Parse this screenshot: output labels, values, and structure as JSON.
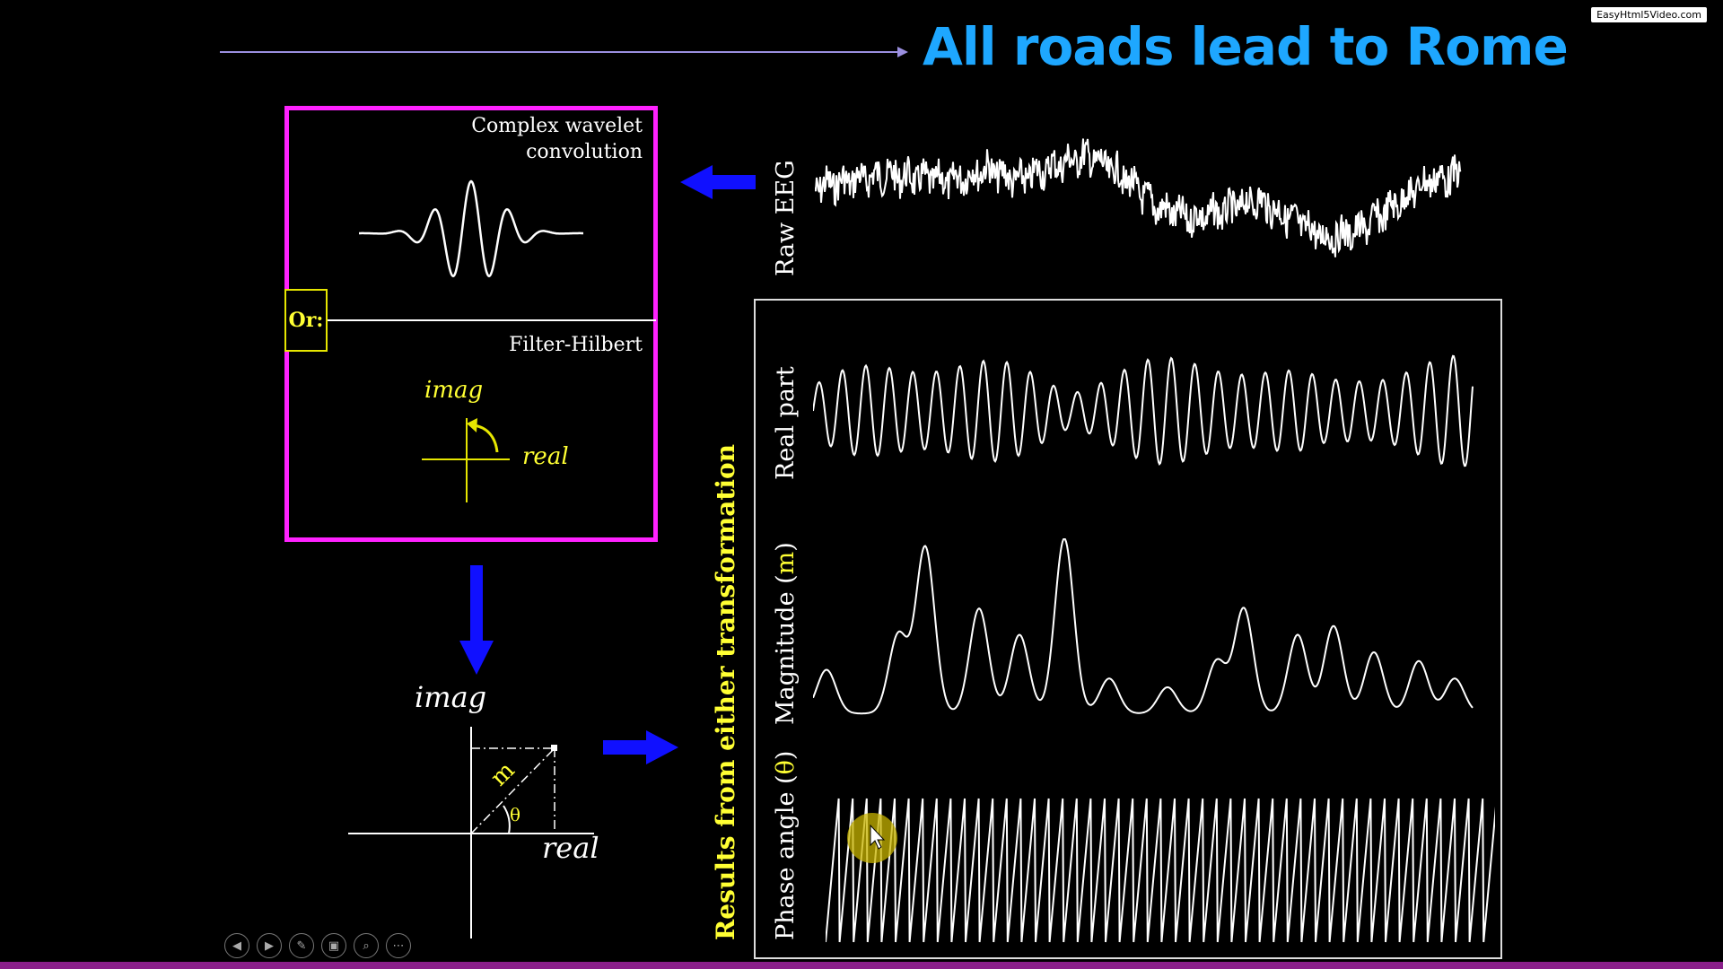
{
  "watermark": "EasyHtml5Video.com",
  "title": "All roads lead to Rome",
  "methods": {
    "wavelet_label_line1": "Complex wavelet",
    "wavelet_label_line2": "convolution",
    "or_label": "Or:",
    "hilbert_label": "Filter-Hilbert",
    "imag_label": "imag",
    "real_label": "real"
  },
  "polar": {
    "imag_label": "imag",
    "real_label": "real",
    "m_label": "m",
    "theta_label": "θ"
  },
  "results_label": "Results from either transformation",
  "signals": {
    "raw": "Raw EEG",
    "real_part": "Real part",
    "magnitude_prefix": "Magnitude (",
    "magnitude_m": "m",
    "magnitude_suffix": ")",
    "phase_prefix": "Phase angle (",
    "phase_theta": "θ",
    "phase_suffix": ")"
  },
  "controls": [
    {
      "icon": "prev-icon",
      "glyph": "◀"
    },
    {
      "icon": "next-icon",
      "glyph": "▶"
    },
    {
      "icon": "pen-icon",
      "glyph": "✎"
    },
    {
      "icon": "slides-icon",
      "glyph": "▣"
    },
    {
      "icon": "zoom-icon",
      "glyph": "⌕"
    },
    {
      "icon": "more-icon",
      "glyph": "⋯"
    }
  ],
  "colors": {
    "title": "#1ea7ff",
    "box_border": "#ff22ff",
    "arrow": "#1010ff",
    "accent_yellow": "#ffff33",
    "bottom_bar": "#8a1f8a"
  }
}
